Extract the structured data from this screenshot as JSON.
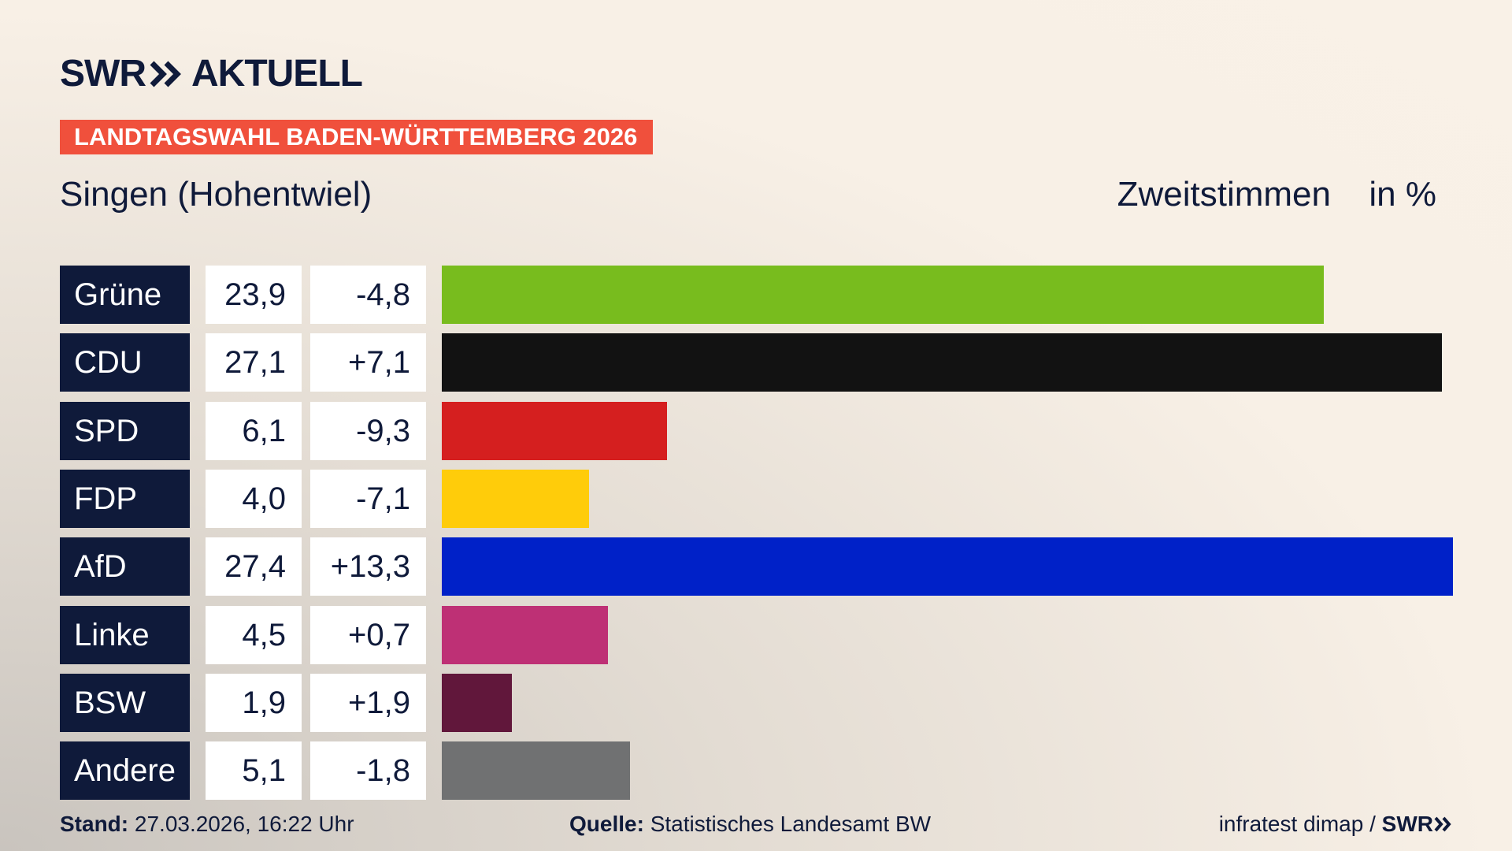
{
  "header": {
    "brand": "SWR",
    "brand_suffix": "AKTUELL",
    "banner": "LANDTAGSWAHL BADEN-WÜRTTEMBERG 2026"
  },
  "chart_data": {
    "type": "bar",
    "title": "Singen (Hohentwiel)",
    "subtitle": "Zweitstimmen",
    "unit": "in %",
    "categories": [
      "Grüne",
      "CDU",
      "SPD",
      "FDP",
      "AfD",
      "Linke",
      "BSW",
      "Andere"
    ],
    "values": [
      23.9,
      27.1,
      6.1,
      4.0,
      27.4,
      4.5,
      1.9,
      5.1
    ],
    "value_labels": [
      "23,9",
      "27,1",
      "6,1",
      "4,0",
      "27,4",
      "4,5",
      "1,9",
      "5,1"
    ],
    "changes": [
      -4.8,
      7.1,
      -9.3,
      -7.1,
      13.3,
      0.7,
      1.9,
      -1.8
    ],
    "change_labels": [
      "-4,8",
      "+7,1",
      "-9,3",
      "-7,1",
      "+13,3",
      "+0,7",
      "+1,9",
      "-1,8"
    ],
    "colors": [
      "#78bc1e",
      "#121212",
      "#d51f1f",
      "#ffcc0a",
      "#0021c8",
      "#be3075",
      "#61173b",
      "#707172"
    ]
  },
  "footer": {
    "stand_label": "Stand:",
    "stand": "27.03.2026, 16:22 Uhr",
    "source_label": "Quelle:",
    "source": "Statistisches Landesamt BW",
    "credit": "infratest dimap /",
    "credit_brand": "SWR"
  }
}
